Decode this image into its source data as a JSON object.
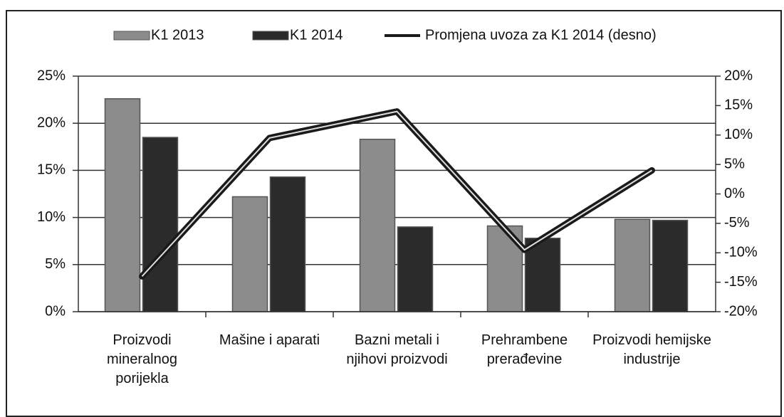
{
  "chart_data": {
    "type": "bar",
    "categories": [
      "Proizvodi mineralnog porijekla",
      "Mašine i aparati",
      "Bazni metali i njihovi proizvodi",
      "Prehrambene prerađevine",
      "Proizvodi hemijske industrije"
    ],
    "series": [
      {
        "name": "K1 2013",
        "type": "bar",
        "color": "#8c8c8c",
        "values": [
          22.6,
          12.2,
          18.3,
          9.1,
          9.8
        ]
      },
      {
        "name": "K1 2014",
        "type": "bar",
        "color": "#2b2b2b",
        "values": [
          18.5,
          14.3,
          9.0,
          7.8,
          9.7
        ]
      },
      {
        "name": "Promjena uvoza za K1 2014 (desno)",
        "type": "line",
        "axis": "y2",
        "color": "#1a1a1a",
        "values": [
          -14,
          9.5,
          14,
          -9.5,
          4
        ]
      }
    ],
    "ylim": [
      0,
      25
    ],
    "yticks": [
      {
        "value": 0,
        "label": "0%"
      },
      {
        "value": 5,
        "label": "5%"
      },
      {
        "value": 10,
        "label": "10%"
      },
      {
        "value": 15,
        "label": "15%"
      },
      {
        "value": 20,
        "label": "20%"
      },
      {
        "value": 25,
        "label": "25%"
      }
    ],
    "y2lim": [
      -20,
      20
    ],
    "y2ticks": [
      {
        "value": -20,
        "label": "-20%"
      },
      {
        "value": -15,
        "label": "-15%"
      },
      {
        "value": -10,
        "label": "-10%"
      },
      {
        "value": -5,
        "label": "-5%"
      },
      {
        "value": 0,
        "label": "0%"
      },
      {
        "value": 5,
        "label": "5%"
      },
      {
        "value": 10,
        "label": "10%"
      },
      {
        "value": 15,
        "label": "15%"
      },
      {
        "value": 20,
        "label": "20%"
      }
    ],
    "grid": true,
    "legend": "top"
  }
}
